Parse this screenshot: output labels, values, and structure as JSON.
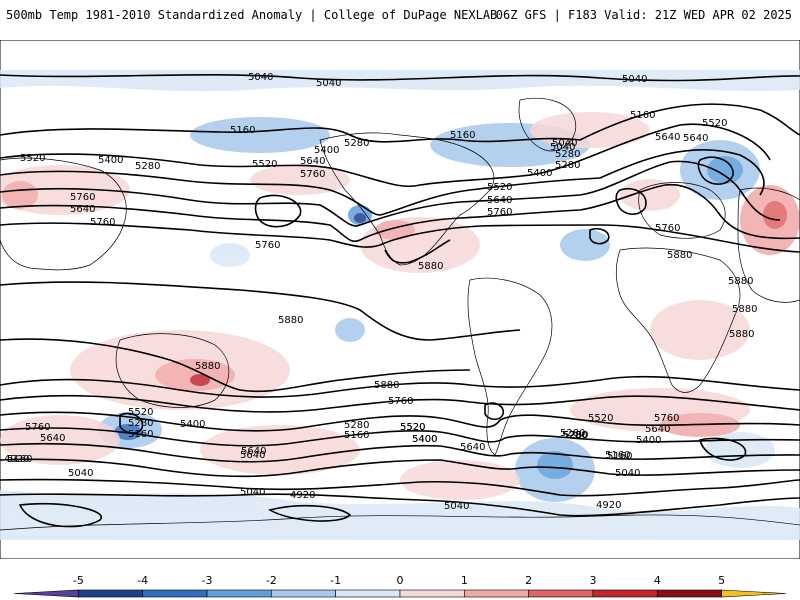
{
  "header": {
    "left": "500mb Temp 1981-2010 Standardized Anomaly | College of DuPage NEXLAB",
    "right": "06Z GFS | F183 Valid: 21Z WED APR 02 2025"
  },
  "colorbar": {
    "ticks": [
      "-5",
      "-4",
      "-3",
      "-2",
      "-1",
      "0",
      "1",
      "2",
      "3",
      "4",
      "5"
    ],
    "colors": [
      "#5a3f9e",
      "#1f3f8f",
      "#2f6fc0",
      "#5f9fdc",
      "#a6c8ec",
      "#d9e8f6",
      "#f7d8d8",
      "#f0a8a8",
      "#e06464",
      "#c0282e",
      "#8a0f17",
      "#f2c21e"
    ]
  },
  "map": {
    "contour_labels": [
      "5040",
      "5040",
      "5040",
      "5160",
      "5280",
      "5160",
      "5040",
      "5160",
      "5520",
      "5400",
      "5280",
      "5520",
      "5640",
      "5400",
      "5280",
      "5640",
      "5760",
      "5520",
      "5640",
      "5760",
      "5400",
      "5280",
      "5040",
      "5520",
      "5640",
      "5760",
      "5760",
      "5880",
      "5880",
      "5880",
      "5880",
      "5880",
      "5880",
      "5760",
      "5640",
      "5520",
      "5400",
      "5280",
      "5160",
      "5040",
      "4920",
      "5520",
      "5280",
      "5160",
      "5400",
      "5640",
      "5760",
      "5280",
      "5160",
      "5520",
      "5400",
      "5640",
      "5160",
      "5280",
      "5040",
      "4920",
      "5880",
      "5760",
      "5520",
      "5640",
      "5400",
      "5280",
      "5160",
      "5040",
      "4920",
      "5760",
      "5640",
      "5760",
      "5880",
      "5640",
      "5040"
    ]
  }
}
